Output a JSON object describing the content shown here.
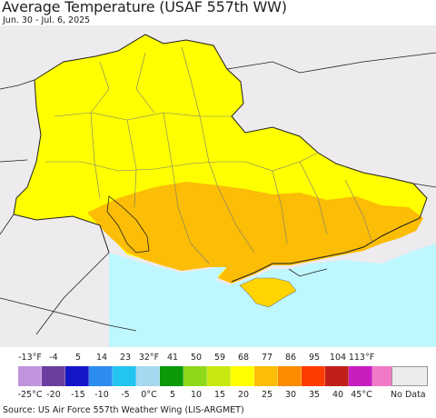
{
  "header": {
    "title": "Average Temperature (USAF 557th WW)",
    "subtitle": "Jun. 30 - Jul. 6, 2025"
  },
  "map": {
    "colors": {
      "background_land": "#eeebee",
      "sea": "#bff7ff",
      "warm_yellow": "#ffff00",
      "orange": "#fbbd05",
      "light_orange": "#ffd400",
      "border": "#7a7a7a",
      "outline": "#202020"
    }
  },
  "legend": {
    "fahrenheit_labels": [
      "-13°F",
      "-4",
      "5",
      "14",
      "23",
      "32°F",
      "41",
      "50",
      "59",
      "68",
      "77",
      "86",
      "95",
      "104",
      "113°F"
    ],
    "celsius_labels": [
      "-25°C",
      "-20",
      "-15",
      "-10",
      "-5",
      "0°C",
      "5",
      "10",
      "15",
      "20",
      "25",
      "30",
      "35",
      "40",
      "45°C"
    ],
    "colors": [
      "#c195dd",
      "#6a3fa0",
      "#1616c8",
      "#2d8cf0",
      "#24c4f0",
      "#a6d8f0",
      "#0a9a0a",
      "#8ed81a",
      "#c8e810",
      "#ffff00",
      "#fbbd05",
      "#fb8c00",
      "#ff3c00",
      "#c0201a",
      "#c81ec0",
      "#f07ac8"
    ],
    "no_data_label": "No Data"
  },
  "footer": {
    "source": "Source: US Air Force 557th Weather Wing (LIS-ARGMET)"
  }
}
